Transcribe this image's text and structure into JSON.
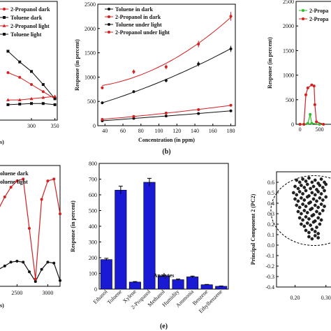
{
  "chart_data": [
    {
      "id": "a",
      "type": "line",
      "x_ticks": [
        "300",
        "350"
      ],
      "xlabel": "s)",
      "xlim": [
        230,
        355
      ],
      "ylim": [
        0,
        1
      ],
      "legend": [
        "2-Propanol dark",
        "Toluene dark",
        "2-Propanol light",
        "Toluene light"
      ],
      "legend_placement": "top-left",
      "series": [
        {
          "name": "2-Propanol dark",
          "color": "#d42020",
          "x": [
            250,
            275,
            300,
            325,
            350
          ],
          "y": [
            0.4,
            0.36,
            0.3,
            0.24,
            0.18
          ]
        },
        {
          "name": "Toluene dark",
          "color": "#111111",
          "x": [
            250,
            275,
            300,
            325,
            350
          ],
          "y": [
            0.58,
            0.49,
            0.41,
            0.3,
            0.18
          ]
        },
        {
          "name": "2-Propanol light",
          "color": "#d42020",
          "x": [
            250,
            275,
            300,
            325,
            350
          ],
          "y": [
            0.17,
            0.17,
            0.18,
            0.19,
            0.2
          ]
        },
        {
          "name": "Toluene light",
          "color": "#111111",
          "x": [
            250,
            275,
            300,
            325,
            350
          ],
          "y": [
            0.13,
            0.135,
            0.14,
            0.14,
            0.13
          ]
        }
      ]
    },
    {
      "id": "b",
      "type": "line",
      "panel_label": "(b)",
      "xlabel": "Concentration (in ppm)",
      "ylabel": "Response (in percent)",
      "xlim": [
        32,
        185
      ],
      "ylim": [
        0,
        2500
      ],
      "x_ticks": [
        40,
        60,
        80,
        100,
        120,
        140,
        160,
        180
      ],
      "y_ticks": [
        0,
        500,
        1000,
        1500,
        2000,
        2500
      ],
      "legend": [
        "Toluene in dark",
        "2-Propanol in dark",
        "Toluene under light",
        "2-Propanol under light"
      ],
      "legend_placement": "top-left",
      "series": [
        {
          "name": "Toluene in dark",
          "color": "#111111",
          "x": [
            37,
            72,
            108,
            144,
            180
          ],
          "y": [
            100,
            150,
            200,
            250,
            305
          ]
        },
        {
          "name": "2-Propanol in dark",
          "color": "#d42020",
          "x": [
            37,
            72,
            108,
            144,
            180
          ],
          "y": [
            130,
            190,
            260,
            330,
            420
          ]
        },
        {
          "name": "Toluene under light",
          "color": "#111111",
          "x": [
            37,
            72,
            108,
            144,
            180
          ],
          "y": [
            470,
            700,
            930,
            1270,
            1580
          ]
        },
        {
          "name": "2-Propanol under light",
          "color": "#d42020",
          "x": [
            37,
            72,
            108,
            144,
            180
          ],
          "y": [
            780,
            1110,
            1210,
            1680,
            2250
          ]
        }
      ]
    },
    {
      "id": "c",
      "type": "line",
      "x_ticks": [
        "0",
        "500"
      ],
      "ylabel": "Response (in percent)",
      "ylim": [
        0,
        2500
      ],
      "y_ticks": [
        0,
        500,
        1000,
        1500,
        2000,
        2500
      ],
      "legend": [
        "2-Propa",
        "2-Propa"
      ],
      "legend_placement": "top-left",
      "series": [
        {
          "name": "2-Propa",
          "color": "#2bbf2b",
          "x": [
            0,
            100,
            200,
            260,
            300,
            500
          ],
          "y": [
            0,
            0,
            20,
            200,
            20,
            0
          ]
        },
        {
          "name": "2-Propa",
          "color": "#d42020",
          "x": [
            0,
            100,
            150,
            200,
            300,
            360,
            380,
            420,
            600
          ],
          "y": [
            0,
            0,
            600,
            740,
            800,
            780,
            400,
            50,
            0
          ]
        }
      ]
    },
    {
      "id": "d",
      "type": "line",
      "x_ticks": [
        "2500",
        "3000"
      ],
      "xlabel": "s)",
      "legend": [
        "oluene dark",
        "oluene light"
      ],
      "legend_placement": "top-left",
      "series": [
        {
          "name": "oluene dark",
          "color": "#111111",
          "x": [
            2200,
            2300,
            2400,
            2500,
            2600,
            2700,
            2800,
            2900,
            3000,
            3100,
            3200
          ],
          "y": [
            0.35,
            0.42,
            0.5,
            0.52,
            0.5,
            0.3,
            0.1,
            0.35,
            0.5,
            0.48,
            0.12
          ]
        },
        {
          "name": "oluene light",
          "color": "#d42020",
          "x": [
            2200,
            2300,
            2400,
            2500,
            2600,
            2700,
            2800,
            2900,
            3000,
            3100,
            3200
          ],
          "y": [
            1.6,
            1.85,
            2.05,
            2.18,
            2.22,
            1.2,
            0.15,
            1.8,
            2.18,
            2.22,
            1.5
          ]
        }
      ]
    },
    {
      "id": "e",
      "type": "bar",
      "panel_label": "(e)",
      "xlabel": "Analytes",
      "ylabel": "Response (in percent)",
      "ylim": [
        0,
        800
      ],
      "y_ticks": [
        0,
        100,
        200,
        300,
        400,
        500,
        600,
        700,
        800
      ],
      "categories": [
        "Ethanol",
        "Toluene",
        "Xylene",
        "2-Propanol",
        "Methanol",
        "Humidity",
        "Ammonia",
        "Benzene",
        "Ethylbenzene"
      ],
      "values": [
        188,
        630,
        45,
        680,
        85,
        60,
        78,
        28,
        18
      ],
      "errors": [
        8,
        25,
        3,
        25,
        5,
        4,
        5,
        2,
        2
      ],
      "color": "#1a1ad4"
    },
    {
      "id": "f",
      "type": "scatter",
      "ylabel": "Principal Component 2 (PC2)",
      "x_ticks": [
        "0.20",
        "0.30"
      ],
      "ylim": [
        -0.4,
        0.7
      ],
      "y_ticks": [
        "0.6",
        "0.5",
        "0.4",
        "0.3",
        "0.2",
        "0.1",
        "0.0",
        "-0.1",
        "-0.2",
        "-0.3",
        "-0.4"
      ],
      "xlim": [
        0.14,
        0.33
      ],
      "points": [
        [
          0.205,
          0.62
        ],
        [
          0.215,
          0.6
        ],
        [
          0.225,
          0.63
        ],
        [
          0.235,
          0.61
        ],
        [
          0.245,
          0.64
        ],
        [
          0.255,
          0.6
        ],
        [
          0.265,
          0.62
        ],
        [
          0.275,
          0.59
        ],
        [
          0.285,
          0.63
        ],
        [
          0.295,
          0.6
        ],
        [
          0.2,
          0.56
        ],
        [
          0.21,
          0.54
        ],
        [
          0.22,
          0.57
        ],
        [
          0.23,
          0.55
        ],
        [
          0.24,
          0.58
        ],
        [
          0.25,
          0.54
        ],
        [
          0.26,
          0.56
        ],
        [
          0.27,
          0.53
        ],
        [
          0.28,
          0.57
        ],
        [
          0.29,
          0.55
        ],
        [
          0.3,
          0.58
        ],
        [
          0.195,
          0.5
        ],
        [
          0.205,
          0.48
        ],
        [
          0.215,
          0.51
        ],
        [
          0.225,
          0.49
        ],
        [
          0.235,
          0.52
        ],
        [
          0.245,
          0.47
        ],
        [
          0.255,
          0.5
        ],
        [
          0.265,
          0.48
        ],
        [
          0.275,
          0.51
        ],
        [
          0.285,
          0.49
        ],
        [
          0.295,
          0.52
        ],
        [
          0.2,
          0.44
        ],
        [
          0.21,
          0.42
        ],
        [
          0.22,
          0.45
        ],
        [
          0.23,
          0.43
        ],
        [
          0.24,
          0.46
        ],
        [
          0.25,
          0.41
        ],
        [
          0.26,
          0.44
        ],
        [
          0.27,
          0.42
        ],
        [
          0.28,
          0.45
        ],
        [
          0.29,
          0.43
        ],
        [
          0.3,
          0.46
        ],
        [
          0.205,
          0.38
        ],
        [
          0.215,
          0.36
        ],
        [
          0.225,
          0.39
        ],
        [
          0.235,
          0.37
        ],
        [
          0.245,
          0.4
        ],
        [
          0.255,
          0.35
        ],
        [
          0.265,
          0.38
        ],
        [
          0.275,
          0.36
        ],
        [
          0.285,
          0.39
        ],
        [
          0.295,
          0.37
        ],
        [
          0.21,
          0.32
        ],
        [
          0.22,
          0.3
        ],
        [
          0.23,
          0.33
        ],
        [
          0.24,
          0.31
        ],
        [
          0.25,
          0.34
        ],
        [
          0.26,
          0.29
        ],
        [
          0.27,
          0.32
        ],
        [
          0.28,
          0.3
        ],
        [
          0.29,
          0.33
        ],
        [
          0.215,
          0.26
        ],
        [
          0.225,
          0.24
        ],
        [
          0.235,
          0.27
        ],
        [
          0.245,
          0.25
        ],
        [
          0.255,
          0.28
        ],
        [
          0.265,
          0.23
        ],
        [
          0.275,
          0.26
        ],
        [
          0.285,
          0.24
        ],
        [
          0.22,
          0.2
        ],
        [
          0.23,
          0.18
        ],
        [
          0.24,
          0.21
        ],
        [
          0.25,
          0.19
        ],
        [
          0.26,
          0.22
        ],
        [
          0.27,
          0.17
        ],
        [
          0.28,
          0.2
        ],
        [
          0.235,
          0.14
        ],
        [
          0.245,
          0.12
        ],
        [
          0.255,
          0.15
        ],
        [
          0.265,
          0.13
        ],
        [
          0.275,
          0.11
        ],
        [
          0.245,
          0.08
        ],
        [
          0.255,
          0.06
        ],
        [
          0.265,
          0.09
        ],
        [
          0.275,
          0.07
        ]
      ]
    }
  ]
}
